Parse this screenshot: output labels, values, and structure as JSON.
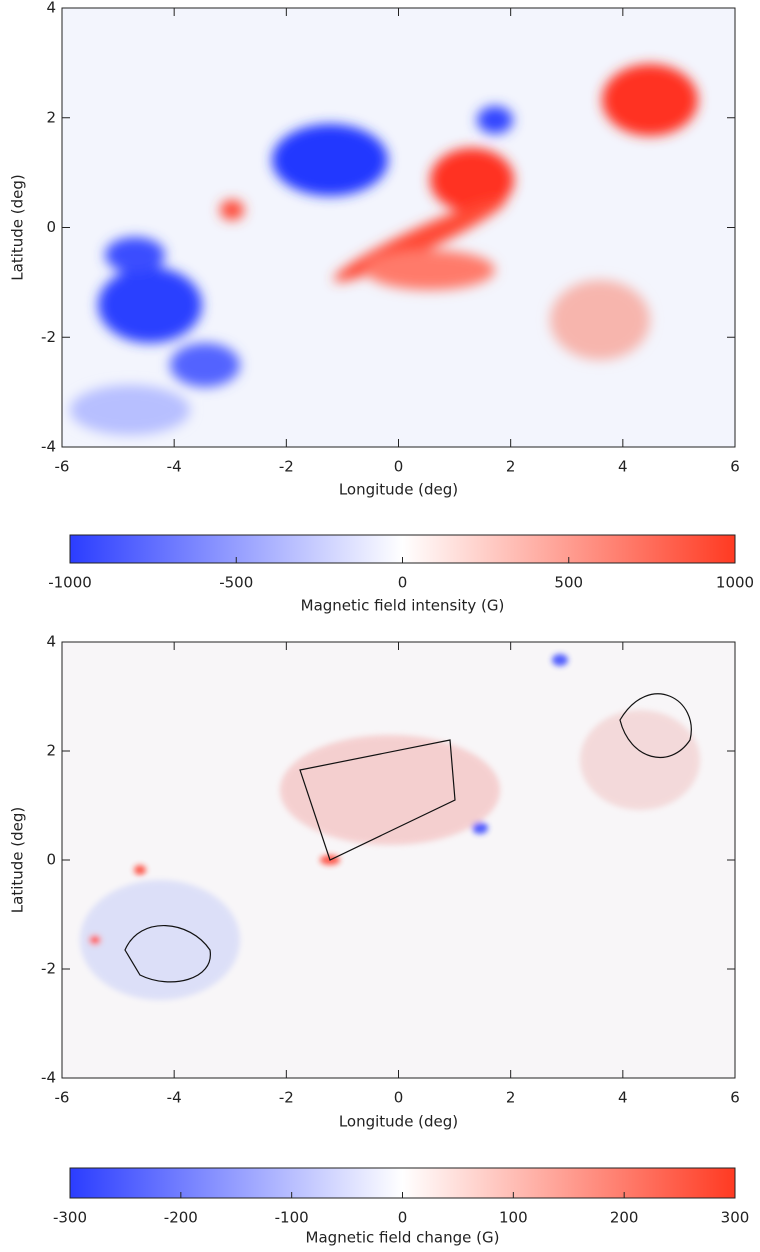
{
  "chart_data": [
    {
      "type": "map",
      "xlabel": "Longitude (deg)",
      "ylabel": "Latitude (deg)",
      "xlim": [
        -6,
        6
      ],
      "ylim": [
        -4,
        4
      ],
      "xticks": [
        -6,
        -4,
        -2,
        0,
        2,
        4,
        6
      ],
      "yticks": [
        -4,
        -2,
        0,
        2,
        4
      ],
      "colorbar": {
        "label": "Magnetic field intensity (G)",
        "lim": [
          -1000,
          1000
        ],
        "ticks": [
          -1000,
          -500,
          0,
          500,
          1000
        ],
        "colors": [
          "#2b3dff",
          "#ffffff",
          "#ff3a22"
        ]
      }
    },
    {
      "type": "map",
      "xlabel": "Longitude (deg)",
      "ylabel": "Latitude (deg)",
      "xlim": [
        -6,
        6
      ],
      "ylim": [
        -4,
        4
      ],
      "xticks": [
        -6,
        -4,
        -2,
        0,
        2,
        4,
        6
      ],
      "yticks": [
        -4,
        -2,
        0,
        2,
        4
      ],
      "colorbar": {
        "label": "Magnetic field change (G)",
        "lim": [
          -300,
          300
        ],
        "ticks": [
          -300,
          -200,
          -100,
          0,
          100,
          200,
          300
        ],
        "colors": [
          "#2b3dff",
          "#ffffff",
          "#ff3a22"
        ]
      }
    }
  ]
}
